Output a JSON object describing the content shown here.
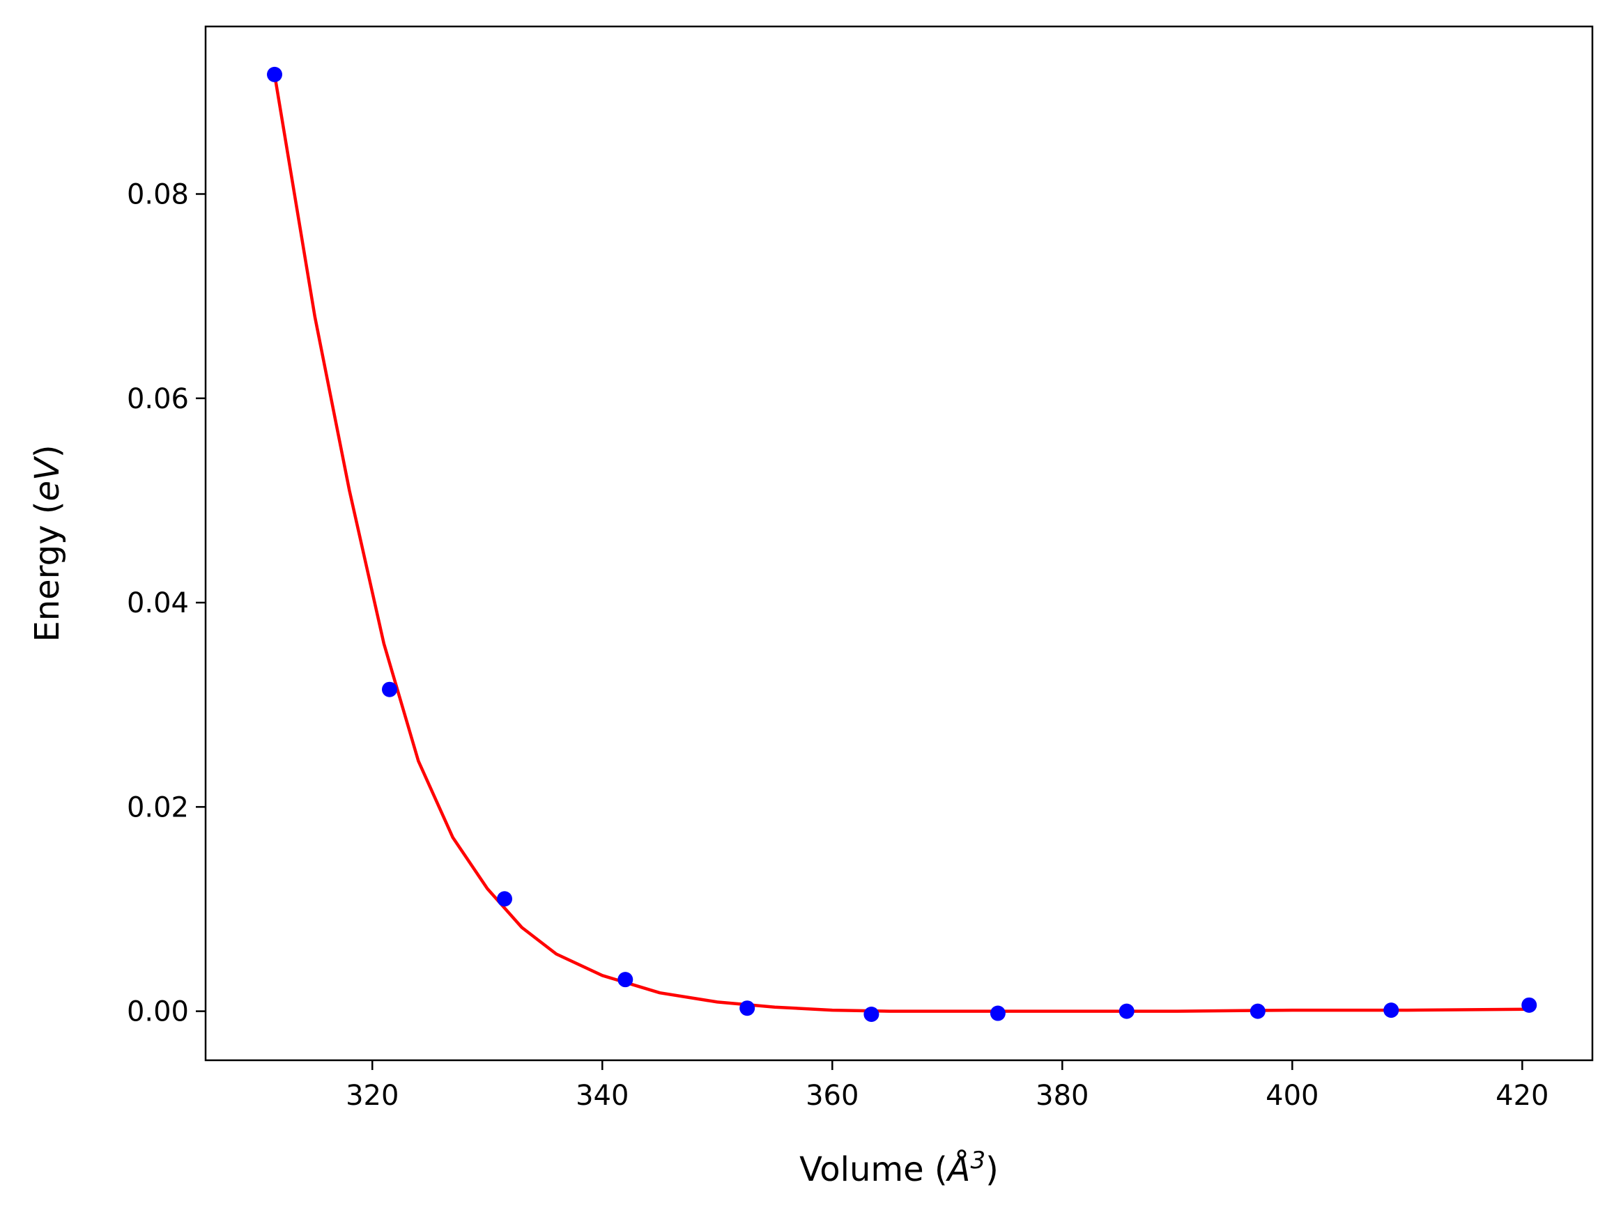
{
  "chart_data": {
    "type": "scatter",
    "xlabel_prefix": "Volume (",
    "xlabel_symbol": "Å",
    "xlabel_exp": "3",
    "xlabel_suffix": ")",
    "ylabel_prefix": "Energy (",
    "ylabel_unit": "eV",
    "ylabel_suffix": ")",
    "xlim": [
      305.5,
      426.1
    ],
    "ylim": [
      -0.0048,
      0.0964
    ],
    "xticks": [
      320,
      340,
      360,
      380,
      400,
      420
    ],
    "xtick_labels": [
      "320",
      "340",
      "360",
      "380",
      "400",
      "420"
    ],
    "yticks": [
      0.0,
      0.02,
      0.04,
      0.06,
      0.08
    ],
    "ytick_labels": [
      "0.00",
      "0.02",
      "0.04",
      "0.06",
      "0.08"
    ],
    "grid": false,
    "series": [
      {
        "kind": "points",
        "color": "#0000ff",
        "x": [
          311.5,
          321.5,
          331.5,
          342.0,
          352.6,
          363.4,
          374.4,
          385.6,
          397.0,
          408.6,
          420.6
        ],
        "y": [
          0.0917,
          0.0315,
          0.011,
          0.0031,
          0.0003,
          -0.0003,
          -0.0002,
          0.0,
          0.0,
          0.0001,
          0.0006
        ]
      },
      {
        "kind": "fit-line",
        "color": "#ff0000",
        "x": [
          311.5,
          315,
          318,
          321,
          324,
          327,
          330,
          333,
          336,
          340,
          345,
          350,
          355,
          360,
          365,
          370,
          380,
          390,
          400,
          410,
          420.6
        ],
        "y": [
          0.0917,
          0.068,
          0.051,
          0.036,
          0.0245,
          0.017,
          0.012,
          0.0082,
          0.0056,
          0.0035,
          0.0018,
          0.0009,
          0.0004,
          0.0001,
          0.0,
          0.0,
          0.0,
          0.0,
          0.0001,
          0.0001,
          0.0002
        ]
      }
    ]
  }
}
